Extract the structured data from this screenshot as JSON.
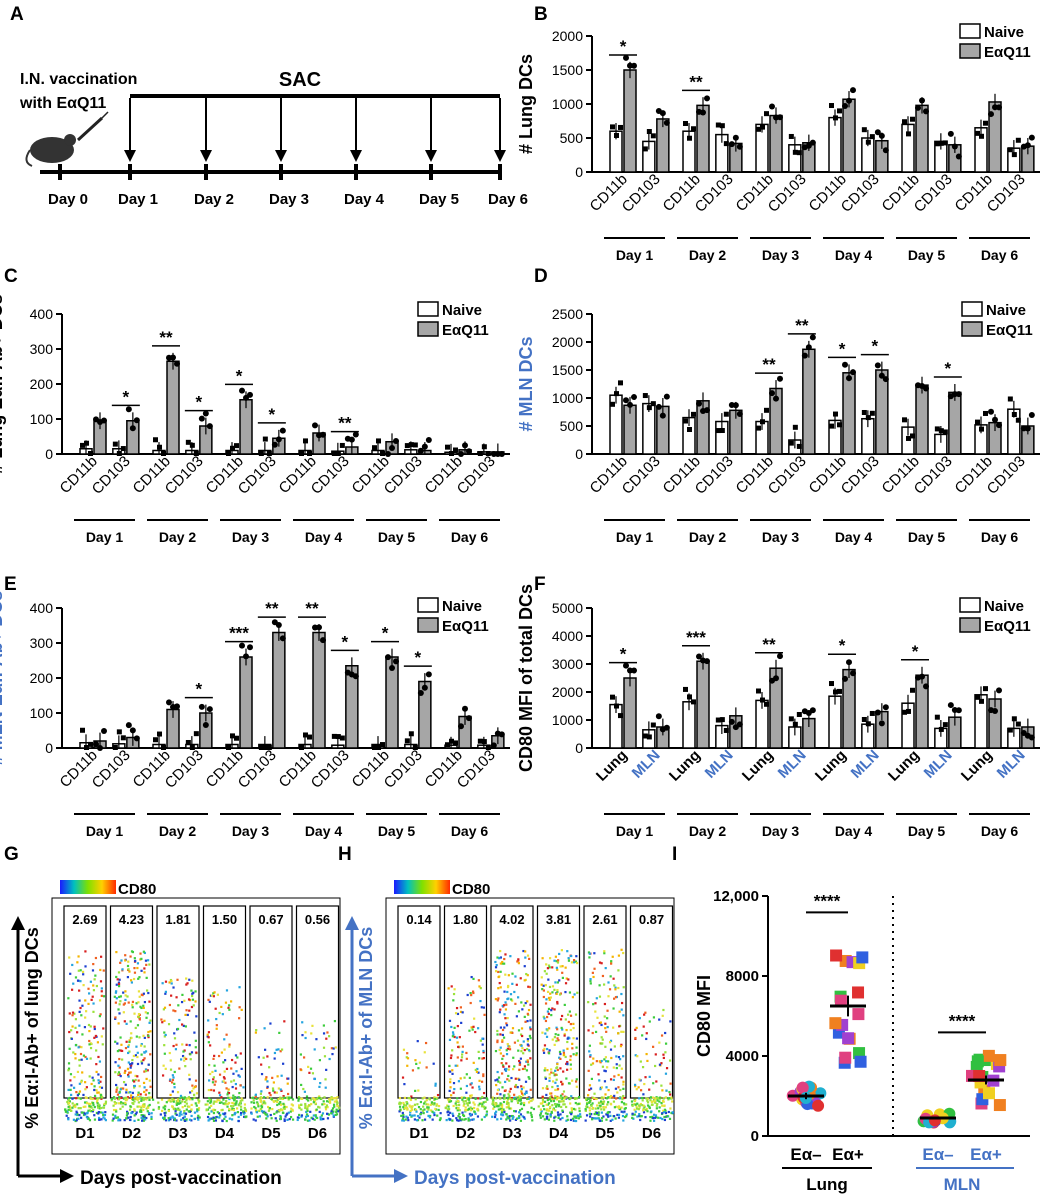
{
  "panels": {
    "A": "A",
    "B": "B",
    "C": "C",
    "D": "D",
    "E": "E",
    "F": "F",
    "G": "G",
    "H": "H",
    "I": "I"
  },
  "timeline": {
    "title_line1": "I.N. vaccination",
    "title_line2": "with EαQ11",
    "sac_label": "SAC",
    "days": [
      "Day 0",
      "Day 1",
      "Day 2",
      "Day 3",
      "Day 4",
      "Day 5",
      "Day 6"
    ]
  },
  "legend": {
    "naive": "Naive",
    "vaccinated": "EαQ11"
  },
  "chart_data": [
    {
      "id": "B",
      "type": "bar",
      "ylabel": "# Lung DCs",
      "ylim": [
        0,
        2000
      ],
      "yticks": [
        0,
        500,
        1000,
        1500,
        2000
      ],
      "groups": [
        "Day 1",
        "Day 2",
        "Day 3",
        "Day 4",
        "Day 5",
        "Day 6"
      ],
      "subcategories": [
        "CD11b",
        "CD103"
      ],
      "series": [
        {
          "name": "Naive",
          "values": [
            [
              600,
              450
            ],
            [
              600,
              550
            ],
            [
              700,
              400
            ],
            [
              800,
              500
            ],
            [
              700,
              450
            ],
            [
              650,
              350
            ]
          ]
        },
        {
          "name": "EαQ11",
          "values": [
            [
              1500,
              780
            ],
            [
              980,
              420
            ],
            [
              830,
              430
            ],
            [
              1070,
              460
            ],
            [
              980,
              400
            ],
            [
              1030,
              380
            ]
          ]
        }
      ],
      "significance": [
        {
          "group": "Day 1",
          "sub": "CD11b",
          "label": "*"
        },
        {
          "group": "Day 2",
          "sub": "CD11b",
          "label": "**"
        }
      ]
    },
    {
      "id": "C",
      "type": "bar",
      "ylabel": "# Lung Eα:I-Ab+ DCs",
      "ylim": [
        0,
        400
      ],
      "yticks": [
        0,
        100,
        200,
        300,
        400
      ],
      "groups": [
        "Day 1",
        "Day 2",
        "Day 3",
        "Day 4",
        "Day 5",
        "Day 6"
      ],
      "subcategories": [
        "CD11b",
        "CD103"
      ],
      "series": [
        {
          "name": "Naive",
          "values": [
            [
              15,
              15
            ],
            [
              10,
              10
            ],
            [
              10,
              10
            ],
            [
              10,
              8
            ],
            [
              10,
              12
            ],
            [
              5,
              6
            ]
          ]
        },
        {
          "name": "EαQ11",
          "values": [
            [
              95,
              95
            ],
            [
              265,
              80
            ],
            [
              155,
              45
            ],
            [
              60,
              20
            ],
            [
              35,
              10
            ],
            [
              12,
              6
            ]
          ]
        }
      ],
      "significance": [
        {
          "group": "Day 1",
          "sub": "CD103",
          "label": "*"
        },
        {
          "group": "Day 2",
          "sub": "CD11b",
          "label": "**"
        },
        {
          "group": "Day 2",
          "sub": "CD103",
          "label": "*"
        },
        {
          "group": "Day 3",
          "sub": "CD11b",
          "label": "*"
        },
        {
          "group": "Day 3",
          "sub": "CD103",
          "label": "*"
        },
        {
          "group": "Day 4",
          "sub": "CD103",
          "label": "**"
        }
      ]
    },
    {
      "id": "D",
      "type": "bar",
      "ylabel": "# MLN DCs",
      "ylim": [
        0,
        2500
      ],
      "yticks": [
        0,
        500,
        1000,
        1500,
        2000,
        2500
      ],
      "groups": [
        "Day 1",
        "Day 2",
        "Day 3",
        "Day 4",
        "Day 5",
        "Day 6"
      ],
      "subcategories": [
        "CD11b",
        "CD103"
      ],
      "series": [
        {
          "name": "Naive",
          "values": [
            [
              1050,
              900
            ],
            [
              650,
              580
            ],
            [
              580,
              250
            ],
            [
              600,
              630
            ],
            [
              480,
              350
            ],
            [
              520,
              800
            ]
          ]
        },
        {
          "name": "EαQ11",
          "values": [
            [
              870,
              850
            ],
            [
              950,
              780
            ],
            [
              1170,
              1870
            ],
            [
              1450,
              1500
            ],
            [
              1230,
              1100
            ],
            [
              560,
              500
            ]
          ]
        }
      ],
      "significance": [
        {
          "group": "Day 3",
          "sub": "CD11b",
          "label": "**"
        },
        {
          "group": "Day 3",
          "sub": "CD103",
          "label": "**"
        },
        {
          "group": "Day 4",
          "sub": "CD11b",
          "label": "*"
        },
        {
          "group": "Day 4",
          "sub": "CD103",
          "label": "*"
        },
        {
          "group": "Day 5",
          "sub": "CD103",
          "label": "*"
        }
      ]
    },
    {
      "id": "E",
      "type": "bar",
      "ylabel": "# MLN Eα:I-Ab+ DCs",
      "ylim": [
        0,
        400
      ],
      "yticks": [
        0,
        100,
        200,
        300,
        400
      ],
      "groups": [
        "Day 1",
        "Day 2",
        "Day 3",
        "Day 4",
        "Day 5",
        "Day 6"
      ],
      "subcategories": [
        "CD11b",
        "CD103"
      ],
      "series": [
        {
          "name": "Naive",
          "values": [
            [
              15,
              12
            ],
            [
              10,
              10
            ],
            [
              10,
              10
            ],
            [
              10,
              8
            ],
            [
              10,
              10
            ],
            [
              8,
              8
            ]
          ]
        },
        {
          "name": "EαQ11",
          "values": [
            [
              20,
              30
            ],
            [
              110,
              100
            ],
            [
              260,
              330
            ],
            [
              330,
              235
            ],
            [
              260,
              190
            ],
            [
              90,
              35
            ]
          ]
        }
      ],
      "significance": [
        {
          "group": "Day 2",
          "sub": "CD103",
          "label": "*"
        },
        {
          "group": "Day 3",
          "sub": "CD11b",
          "label": "***"
        },
        {
          "group": "Day 3",
          "sub": "CD103",
          "label": "**"
        },
        {
          "group": "Day 4",
          "sub": "CD11b",
          "label": "**"
        },
        {
          "group": "Day 4",
          "sub": "CD103",
          "label": "*"
        },
        {
          "group": "Day 5",
          "sub": "CD11b",
          "label": "*"
        },
        {
          "group": "Day 5",
          "sub": "CD103",
          "label": "*"
        }
      ]
    },
    {
      "id": "F",
      "type": "bar",
      "ylabel": "CD80 MFI of total DCs",
      "ylim": [
        0,
        5000
      ],
      "yticks": [
        0,
        1000,
        2000,
        3000,
        4000,
        5000
      ],
      "groups": [
        "Day 1",
        "Day 2",
        "Day 3",
        "Day 4",
        "Day 5",
        "Day 6"
      ],
      "subcategories": [
        "Lung",
        "MLN"
      ],
      "series": [
        {
          "name": "Naive",
          "values": [
            [
              1550,
              650
            ],
            [
              1650,
              800
            ],
            [
              1700,
              750
            ],
            [
              1850,
              850
            ],
            [
              1600,
              700
            ],
            [
              1900,
              700
            ]
          ]
        },
        {
          "name": "EαQ11",
          "values": [
            [
              2500,
              750
            ],
            [
              3100,
              1150
            ],
            [
              2850,
              1050
            ],
            [
              2800,
              1300
            ],
            [
              2600,
              1100
            ],
            [
              1750,
              750
            ]
          ]
        }
      ],
      "significance": [
        {
          "group": "Day 1",
          "sub": "Lung",
          "label": "*"
        },
        {
          "group": "Day 2",
          "sub": "Lung",
          "label": "***"
        },
        {
          "group": "Day 3",
          "sub": "Lung",
          "label": "**"
        },
        {
          "group": "Day 4",
          "sub": "Lung",
          "label": "*"
        },
        {
          "group": "Day 5",
          "sub": "Lung",
          "label": "*"
        }
      ]
    },
    {
      "id": "G",
      "type": "scatter",
      "colorbar_label": "CD80",
      "ylabel": "% Eα:I-Ab+ of lung DCs",
      "xlabel": "Days post-vaccination",
      "gates": [
        "2.69",
        "4.23",
        "1.81",
        "1.50",
        "0.67",
        "0.56"
      ],
      "categories": [
        "D1",
        "D2",
        "D3",
        "D4",
        "D5",
        "D6"
      ]
    },
    {
      "id": "H",
      "type": "scatter",
      "colorbar_label": "CD80",
      "ylabel": "% Eα:I-Ab+ of MLN DCs",
      "xlabel": "Days post-vaccination",
      "gates": [
        "0.14",
        "1.80",
        "4.02",
        "3.81",
        "2.61",
        "0.87"
      ],
      "categories": [
        "D1",
        "D2",
        "D3",
        "D4",
        "D5",
        "D6"
      ]
    },
    {
      "id": "I",
      "type": "scatter",
      "ylabel": "CD80 MFI",
      "ylim": [
        0,
        12000
      ],
      "yticks": [
        "0",
        "4000",
        "8000",
        "12,000"
      ],
      "categories": [
        "Eα–",
        "Eα+",
        "Eα–",
        "Eα+"
      ],
      "groups": [
        "Lung",
        "MLN"
      ],
      "means": [
        2000,
        6500,
        900,
        2800
      ],
      "significance": [
        "****",
        "****"
      ]
    }
  ]
}
